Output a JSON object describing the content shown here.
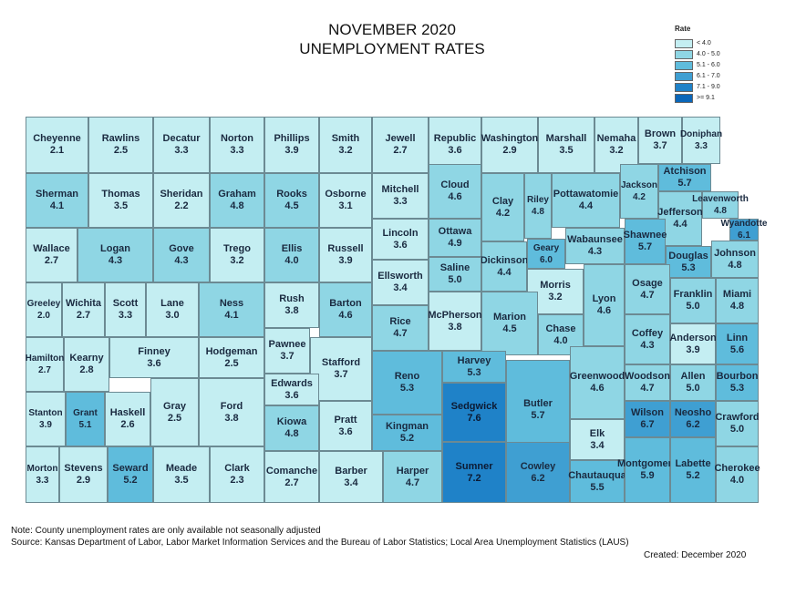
{
  "title": {
    "line1": "NOVEMBER 2020",
    "line2": "UNEMPLOYMENT RATES"
  },
  "legend": {
    "title": "Rate",
    "bins": [
      {
        "label": "< 4.0",
        "color": "#c4eef2"
      },
      {
        "label": "4.0 - 5.0",
        "color": "#8fd6e4"
      },
      {
        "label": "5.1 - 6.0",
        "color": "#5fbcdc"
      },
      {
        "label": "6.1 - 7.0",
        "color": "#3f9fd2"
      },
      {
        "label": "7.1 - 9.0",
        "color": "#1f82c8"
      },
      {
        "label": ">= 9.1",
        "color": "#0b67b9"
      }
    ]
  },
  "counties": [
    {
      "name": "Cheyenne",
      "rate": "2.1"
    },
    {
      "name": "Rawlins",
      "rate": "2.5"
    },
    {
      "name": "Decatur",
      "rate": "3.3"
    },
    {
      "name": "Norton",
      "rate": "3.3"
    },
    {
      "name": "Phillips",
      "rate": "3.9"
    },
    {
      "name": "Smith",
      "rate": "3.2"
    },
    {
      "name": "Jewell",
      "rate": "2.7"
    },
    {
      "name": "Republic",
      "rate": "3.6"
    },
    {
      "name": "Washington",
      "rate": "2.9"
    },
    {
      "name": "Marshall",
      "rate": "3.5"
    },
    {
      "name": "Nemaha",
      "rate": "3.2"
    },
    {
      "name": "Brown",
      "rate": "3.7"
    },
    {
      "name": "Doniphan",
      "rate": "3.3"
    },
    {
      "name": "Sherman",
      "rate": "4.1"
    },
    {
      "name": "Thomas",
      "rate": "3.5"
    },
    {
      "name": "Sheridan",
      "rate": "2.2"
    },
    {
      "name": "Graham",
      "rate": "4.8"
    },
    {
      "name": "Rooks",
      "rate": "4.5"
    },
    {
      "name": "Osborne",
      "rate": "3.1"
    },
    {
      "name": "Mitchell",
      "rate": "3.3"
    },
    {
      "name": "Cloud",
      "rate": "4.6"
    },
    {
      "name": "Clay",
      "rate": "4.2"
    },
    {
      "name": "Riley",
      "rate": "4.8"
    },
    {
      "name": "Pottawatomie",
      "rate": "4.4"
    },
    {
      "name": "Jackson",
      "rate": "4.2"
    },
    {
      "name": "Atchison",
      "rate": "5.7"
    },
    {
      "name": "Jefferson",
      "rate": "4.4"
    },
    {
      "name": "Leavenworth",
      "rate": "4.8"
    },
    {
      "name": "Wyandotte",
      "rate": "6.1"
    },
    {
      "name": "Wallace",
      "rate": "2.7"
    },
    {
      "name": "Logan",
      "rate": "4.3"
    },
    {
      "name": "Gove",
      "rate": "4.3"
    },
    {
      "name": "Trego",
      "rate": "3.2"
    },
    {
      "name": "Ellis",
      "rate": "4.0"
    },
    {
      "name": "Russell",
      "rate": "3.9"
    },
    {
      "name": "Lincoln",
      "rate": "3.6"
    },
    {
      "name": "Ottawa",
      "rate": "4.9"
    },
    {
      "name": "Dickinson",
      "rate": "4.4"
    },
    {
      "name": "Geary",
      "rate": "6.0"
    },
    {
      "name": "Wabaunsee",
      "rate": "4.3"
    },
    {
      "name": "Shawnee",
      "rate": "5.7"
    },
    {
      "name": "Douglas",
      "rate": "5.3"
    },
    {
      "name": "Johnson",
      "rate": "4.8"
    },
    {
      "name": "Greeley",
      "rate": "2.0"
    },
    {
      "name": "Wichita",
      "rate": "2.7"
    },
    {
      "name": "Scott",
      "rate": "3.3"
    },
    {
      "name": "Lane",
      "rate": "3.0"
    },
    {
      "name": "Ness",
      "rate": "4.1"
    },
    {
      "name": "Rush",
      "rate": "3.8"
    },
    {
      "name": "Barton",
      "rate": "4.6"
    },
    {
      "name": "Ellsworth",
      "rate": "3.4"
    },
    {
      "name": "Saline",
      "rate": "5.0"
    },
    {
      "name": "Morris",
      "rate": "3.2"
    },
    {
      "name": "Lyon",
      "rate": "4.6"
    },
    {
      "name": "Osage",
      "rate": "4.7"
    },
    {
      "name": "Franklin",
      "rate": "5.0"
    },
    {
      "name": "Miami",
      "rate": "4.8"
    },
    {
      "name": "Rice",
      "rate": "4.7"
    },
    {
      "name": "McPherson",
      "rate": "3.8"
    },
    {
      "name": "Marion",
      "rate": "4.5"
    },
    {
      "name": "Chase",
      "rate": "4.0"
    },
    {
      "name": "Hamilton",
      "rate": "2.7"
    },
    {
      "name": "Kearny",
      "rate": "2.8"
    },
    {
      "name": "Finney",
      "rate": "3.6"
    },
    {
      "name": "Hodgeman",
      "rate": "2.5"
    },
    {
      "name": "Pawnee",
      "rate": "3.7"
    },
    {
      "name": "Stafford",
      "rate": "3.7"
    },
    {
      "name": "Reno",
      "rate": "5.3"
    },
    {
      "name": "Harvey",
      "rate": "5.3"
    },
    {
      "name": "Butler",
      "rate": "5.7"
    },
    {
      "name": "Greenwood",
      "rate": "4.6"
    },
    {
      "name": "Coffey",
      "rate": "4.3"
    },
    {
      "name": "Anderson",
      "rate": "3.9"
    },
    {
      "name": "Linn",
      "rate": "5.6"
    },
    {
      "name": "Stanton",
      "rate": "3.9"
    },
    {
      "name": "Grant",
      "rate": "5.1"
    },
    {
      "name": "Haskell",
      "rate": "2.6"
    },
    {
      "name": "Gray",
      "rate": "2.5"
    },
    {
      "name": "Ford",
      "rate": "3.8"
    },
    {
      "name": "Edwards",
      "rate": "3.6"
    },
    {
      "name": "Kiowa",
      "rate": "4.8"
    },
    {
      "name": "Pratt",
      "rate": "3.6"
    },
    {
      "name": "Kingman",
      "rate": "5.2"
    },
    {
      "name": "Sedgwick",
      "rate": "7.6"
    },
    {
      "name": "Woodson",
      "rate": "4.7"
    },
    {
      "name": "Allen",
      "rate": "5.0"
    },
    {
      "name": "Bourbon",
      "rate": "5.3"
    },
    {
      "name": "Wilson",
      "rate": "6.7"
    },
    {
      "name": "Neosho",
      "rate": "6.2"
    },
    {
      "name": "Crawford",
      "rate": "5.0"
    },
    {
      "name": "Elk",
      "rate": "3.4"
    },
    {
      "name": "Morton",
      "rate": "3.3"
    },
    {
      "name": "Stevens",
      "rate": "2.9"
    },
    {
      "name": "Seward",
      "rate": "5.2"
    },
    {
      "name": "Meade",
      "rate": "3.5"
    },
    {
      "name": "Clark",
      "rate": "2.3"
    },
    {
      "name": "Comanche",
      "rate": "2.7"
    },
    {
      "name": "Barber",
      "rate": "3.4"
    },
    {
      "name": "Harper",
      "rate": "4.7"
    },
    {
      "name": "Sumner",
      "rate": "7.2"
    },
    {
      "name": "Cowley",
      "rate": "6.2"
    },
    {
      "name": "Chautauqua",
      "rate": "5.5"
    },
    {
      "name": "Montgomery",
      "rate": "5.9"
    },
    {
      "name": "Labette",
      "rate": "5.2"
    },
    {
      "name": "Cherokee",
      "rate": "4.0"
    }
  ],
  "notes": {
    "note": "Note: County unemployment rates are only available not seasonally adjusted",
    "source": "Source: Kansas Department of Labor, Labor Market Information Services and the Bureau of Labor Statistics; Local Area Unemployment Statistics (LAUS)",
    "created": "Created:  December 2020"
  }
}
